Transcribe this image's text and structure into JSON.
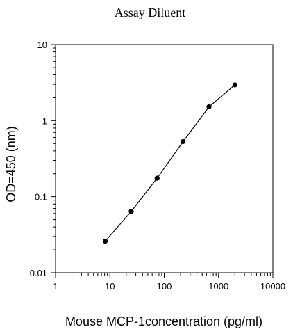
{
  "chart_data": {
    "type": "line",
    "title": "Assay Diluent",
    "xlabel": "Mouse MCP-1concentration (pg/ml)",
    "ylabel": "OD=450 (nm)",
    "xscale": "log",
    "yscale": "log",
    "xlim": [
      1,
      10000
    ],
    "ylim": [
      0.01,
      10
    ],
    "x_ticks": [
      {
        "value": 1,
        "label": "1"
      },
      {
        "value": 10,
        "label": "10"
      },
      {
        "value": 100,
        "label": "100"
      },
      {
        "value": 1000,
        "label": "1000"
      },
      {
        "value": 10000,
        "label": "10000"
      }
    ],
    "y_ticks": [
      {
        "value": 0.01,
        "label": "0.01"
      },
      {
        "value": 0.1,
        "label": "0.1"
      },
      {
        "value": 1,
        "label": "1"
      },
      {
        "value": 10,
        "label": "10"
      }
    ],
    "grid": false,
    "series": [
      {
        "color": "#000000",
        "x": [
          8.2,
          24.7,
          74,
          222,
          667,
          2000
        ],
        "y": [
          0.026,
          0.064,
          0.175,
          0.53,
          1.52,
          2.95
        ]
      }
    ]
  }
}
